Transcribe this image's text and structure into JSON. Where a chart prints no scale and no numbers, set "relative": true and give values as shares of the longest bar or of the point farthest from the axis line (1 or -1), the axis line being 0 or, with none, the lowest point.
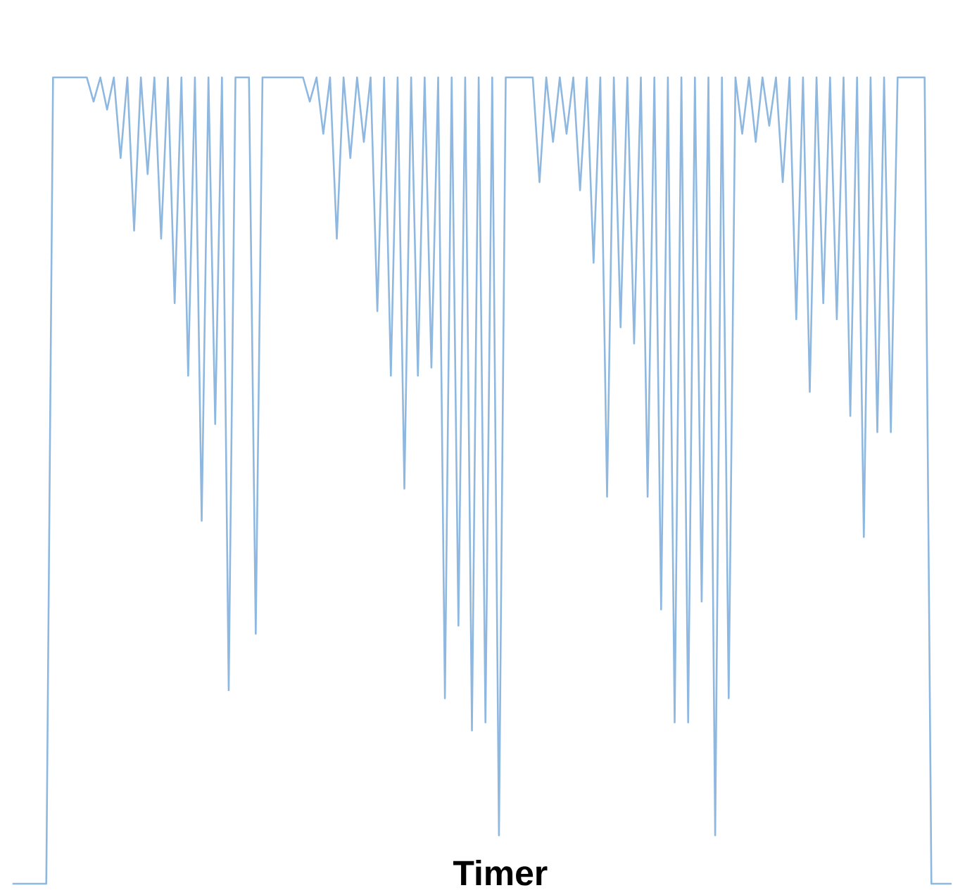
{
  "chart_data": {
    "type": "line",
    "relative": true,
    "xlabel": "Timer",
    "color": "#8fb8e0",
    "categories": [
      null,
      null,
      null,
      null,
      null,
      null,
      null,
      null,
      null,
      null,
      null,
      null,
      null,
      null,
      null,
      null,
      null,
      null,
      null,
      null,
      null,
      null,
      null,
      null,
      null,
      null,
      null,
      null,
      null,
      null,
      null,
      null,
      null,
      null,
      null,
      null,
      null,
      null,
      null,
      null,
      null,
      null,
      null,
      null,
      null,
      null,
      null,
      null,
      null,
      null,
      null,
      null,
      null,
      null,
      null,
      null,
      null,
      null,
      null,
      null,
      null,
      null,
      null,
      null,
      null,
      null,
      null,
      null,
      null,
      null,
      null,
      null,
      null,
      null,
      null,
      null,
      null,
      null,
      null,
      null,
      null,
      null,
      null,
      null,
      null,
      null,
      null,
      null,
      null,
      null,
      null,
      null,
      null,
      null,
      null,
      null,
      null,
      null,
      null,
      null,
      null,
      null,
      null,
      null,
      null,
      null,
      null,
      null,
      null,
      null,
      null,
      null,
      null,
      null,
      null,
      null,
      null,
      null,
      null,
      null,
      null,
      null,
      null,
      null,
      null,
      null,
      null,
      null,
      null,
      null,
      null,
      null,
      null,
      null,
      null,
      null,
      null,
      null,
      null,
      null
    ],
    "values": [
      0,
      0,
      0,
      0,
      0,
      0,
      1,
      1,
      1,
      1,
      1,
      1,
      0.97,
      1,
      0.96,
      1,
      0.9,
      1,
      0.81,
      1,
      0.88,
      1,
      0.8,
      1,
      0.72,
      1,
      0.63,
      1,
      0.45,
      1,
      0.57,
      1,
      0.24,
      1,
      1,
      1,
      0.31,
      1,
      1,
      1,
      1,
      1,
      1,
      1,
      0.97,
      1,
      0.93,
      1,
      0.8,
      1,
      0.9,
      1,
      0.92,
      1,
      0.71,
      1,
      0.63,
      1,
      0.49,
      1,
      0.63,
      1,
      0.64,
      1,
      0.23,
      1,
      0.32,
      1,
      0.19,
      1,
      0.2,
      1,
      0.06,
      1,
      1,
      1,
      1,
      1,
      0.87,
      1,
      0.92,
      1,
      0.93,
      1,
      0.86,
      1,
      0.77,
      1,
      0.48,
      1,
      0.69,
      1,
      0.67,
      1,
      0.48,
      1,
      0.34,
      1,
      0.2,
      1,
      0.2,
      1,
      0.35,
      1,
      0.06,
      1,
      0.23,
      1,
      0.93,
      1,
      0.92,
      1,
      0.94,
      1,
      0.87,
      1,
      0.7,
      1,
      0.61,
      1,
      0.72,
      1,
      0.7,
      1,
      0.58,
      1,
      0.43,
      1,
      0.56,
      1,
      0.56,
      1,
      1,
      1,
      1,
      1,
      0,
      0,
      0,
      0
    ]
  }
}
